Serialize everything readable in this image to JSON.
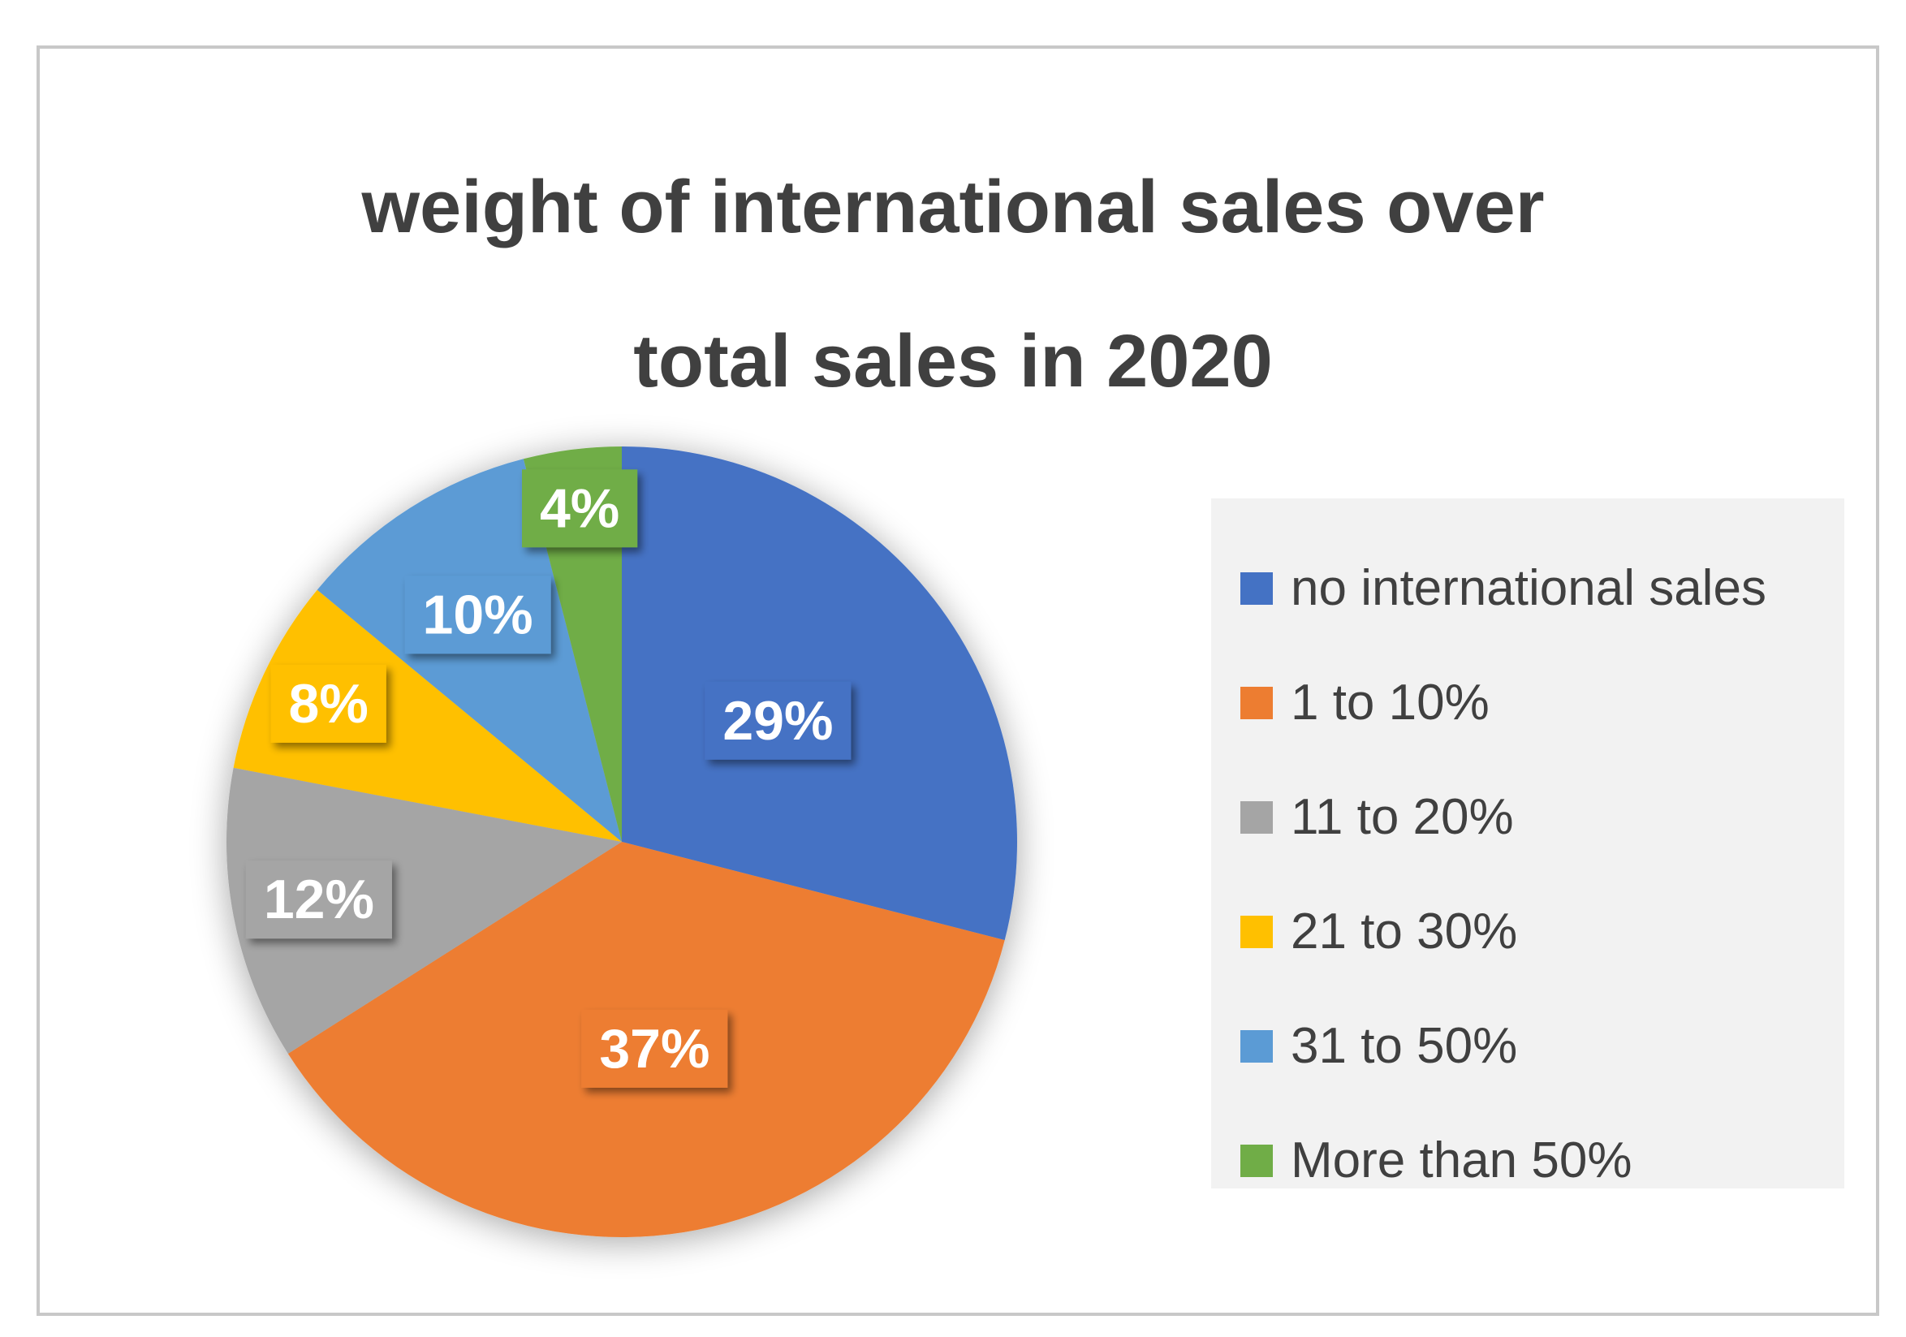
{
  "chart_data": {
    "type": "pie",
    "title": "weight of international sales over\ntotal sales in 2020",
    "categories": [
      "no international sales",
      "1 to 10%",
      "11 to 20%",
      "21 to 30%",
      "31 to 50%",
      "More than 50%"
    ],
    "values": [
      29,
      37,
      12,
      8,
      10,
      4
    ],
    "data_labels": [
      "29%",
      "37%",
      "12%",
      "8%",
      "10%",
      "4%"
    ],
    "colors": [
      "#4472C4",
      "#ED7D31",
      "#A5A5A5",
      "#FFC000",
      "#5B9BD5",
      "#70AD47"
    ],
    "start_angle_deg": 0,
    "direction": "clockwise",
    "legend_position": "right"
  }
}
